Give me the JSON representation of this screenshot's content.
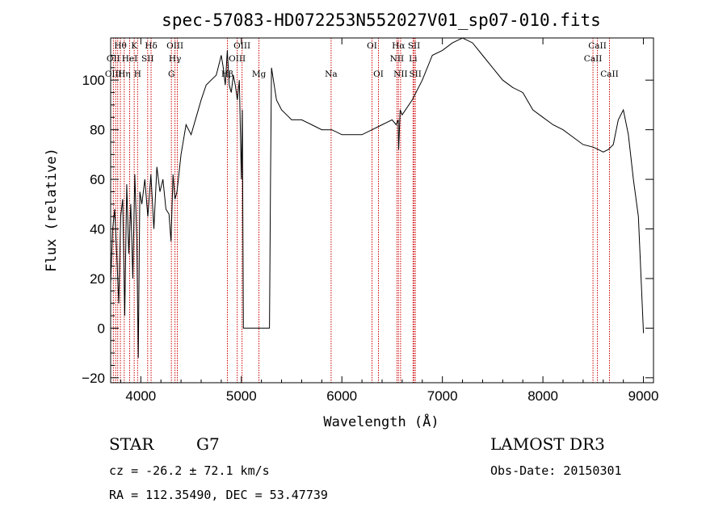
{
  "chart_data": {
    "type": "line",
    "title": "spec-57083-HD072253N552027V01_sp07-010.fits",
    "xlabel": "Wavelength (Å)",
    "ylabel": "Flux (relative)",
    "xlim": [
      3700,
      9100
    ],
    "ylim": [
      -22,
      117
    ],
    "xticks": [
      4000,
      5000,
      6000,
      7000,
      8000,
      9000
    ],
    "yticks": [
      -20,
      0,
      20,
      40,
      60,
      80,
      100
    ],
    "grid": false,
    "line_color": "#000000",
    "marker_color": "#cc0000",
    "series": [
      {
        "x": [
          3700,
          3720,
          3740,
          3760,
          3780,
          3800,
          3820,
          3840,
          3860,
          3880,
          3900,
          3920,
          3940,
          3960,
          3975,
          3990,
          4010,
          4040,
          4070,
          4100,
          4130,
          4160,
          4190,
          4220,
          4250,
          4280,
          4300,
          4320,
          4340,
          4360,
          4400,
          4450,
          4500,
          4550,
          4600,
          4650,
          4700,
          4750,
          4800,
          4820,
          4840,
          4860,
          4880,
          4900,
          4920,
          4940,
          4960,
          4980,
          5000,
          5010,
          5020,
          5100,
          5200,
          5280,
          5290,
          5300,
          5350,
          5400,
          5450,
          5500,
          5600,
          5700,
          5800,
          5900,
          6000,
          6100,
          6200,
          6300,
          6400,
          6450,
          6500,
          6540,
          6560,
          6565,
          6580,
          6600,
          6700,
          6800,
          6900,
          7000,
          7100,
          7200,
          7300,
          7400,
          7500,
          7600,
          7700,
          7800,
          7900,
          8000,
          8100,
          8200,
          8300,
          8400,
          8500,
          8550,
          8600,
          8650,
          8700,
          8750,
          8800,
          8850,
          8900,
          8950,
          9000
        ],
        "y": [
          18,
          40,
          48,
          30,
          10,
          45,
          52,
          5,
          58,
          30,
          50,
          20,
          62,
          35,
          -12,
          55,
          50,
          60,
          45,
          62,
          40,
          65,
          55,
          60,
          48,
          46,
          35,
          62,
          52,
          55,
          70,
          82,
          78,
          85,
          92,
          98,
          100,
          102,
          110,
          105,
          98,
          112,
          98,
          95,
          102,
          98,
          92,
          100,
          60,
          88,
          0,
          0,
          0,
          0,
          60,
          105,
          92,
          88,
          86,
          84,
          84,
          82,
          80,
          80,
          78,
          78,
          78,
          80,
          82,
          83,
          84,
          82,
          84,
          72,
          88,
          86,
          92,
          100,
          110,
          112,
          115,
          117,
          115,
          110,
          105,
          100,
          97,
          95,
          88,
          85,
          82,
          80,
          77,
          74,
          73,
          72,
          71,
          72,
          74,
          84,
          88,
          78,
          60,
          45,
          -2
        ]
      }
    ],
    "lines_row1": [
      "Hθ",
      "K",
      "Hδ",
      "OIII",
      "OIII",
      "OI",
      "Hα",
      "SII",
      "CaII"
    ],
    "lines_row2": [
      "OII",
      "HeI",
      "SII",
      "Hγ",
      "OIII",
      "NII",
      "Li",
      "CaII"
    ],
    "lines_row3": [
      "OIII",
      "Hη",
      "H",
      "G",
      "Hβ",
      "Mg",
      "Na",
      "OI",
      "NII",
      "SII",
      "CaII"
    ],
    "lines_row1_x": [
      3797,
      3934,
      4102,
      4340,
      5007,
      6300,
      6563,
      6718,
      8542
    ],
    "lines_row2_x": [
      3727,
      3889,
      4068,
      4340,
      4959,
      6548,
      6708,
      8498
    ],
    "lines_row3_x": [
      3727,
      3835,
      3968,
      4304,
      4861,
      5175,
      5893,
      6364,
      6584,
      6731,
      8662
    ],
    "marker_x": [
      3727,
      3750,
      3770,
      3797,
      3835,
      3889,
      3934,
      3968,
      4068,
      4102,
      4304,
      4340,
      4363,
      4861,
      4959,
      5007,
      5175,
      5893,
      6300,
      6364,
      6548,
      6563,
      6584,
      6708,
      6718,
      6731,
      8498,
      8542,
      8662
    ]
  },
  "footer": {
    "object_class": "STAR",
    "subclass": "G7",
    "survey": "LAMOST DR3",
    "cz": "cz = -26.2 ± 72.1 km/s",
    "obs_date": "Obs-Date: 20150301",
    "coords": "RA = 112.35490, DEC =  53.47739"
  }
}
